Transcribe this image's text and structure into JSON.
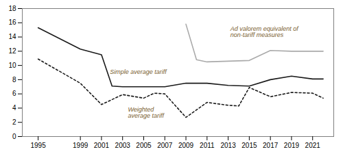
{
  "chart_data": {
    "type": "line",
    "series": [
      {
        "x": [
          1995,
          1999,
          2001,
          2002,
          2003,
          2005,
          2007,
          2009,
          2011,
          2013,
          2015,
          2017,
          2019,
          2021,
          2022
        ],
        "values": [
          15.3,
          12.3,
          11.5,
          7.1,
          7.0,
          7.0,
          7.0,
          7.5,
          7.5,
          7.2,
          7.1,
          8.0,
          8.5,
          8.1,
          8.1
        ],
        "color": "#1a1a1a",
        "line_style": "solid"
      },
      {
        "x": [
          1995,
          1999,
          2001,
          2003,
          2005,
          2006,
          2007,
          2009,
          2011,
          2013,
          2014,
          2015,
          2017,
          2019,
          2021,
          2022
        ],
        "values": [
          10.9,
          7.5,
          4.5,
          5.9,
          5.4,
          6.1,
          6.0,
          2.7,
          4.8,
          4.4,
          4.3,
          6.9,
          5.6,
          6.2,
          6.1,
          5.4
        ],
        "color": "#1a1a1a",
        "line_style": "dashed"
      },
      {
        "x": [
          2009,
          2010,
          2011,
          2013,
          2015,
          2017,
          2019,
          2021,
          2022
        ],
        "values": [
          15.8,
          10.8,
          10.5,
          10.6,
          10.7,
          12.1,
          12.0,
          12.0,
          12.0
        ],
        "color": "#aaaaaa",
        "line_style": "solid"
      }
    ],
    "annotations": [
      {
        "text": "Simple average tariff",
        "x": 2001.8,
        "y": 8.85,
        "color": "#7a6030"
      },
      {
        "text": "Weighted\naverage tariff",
        "x": 2003.5,
        "y": 4.15,
        "color": "#7a6030"
      },
      {
        "text": "Ad valorem equivalent of\nnon-tariff measures",
        "x": 2013.2,
        "y": 15.5,
        "color": "#7a6030"
      }
    ],
    "xlim": [
      1993.5,
      2023.0
    ],
    "xticks": [
      1995,
      1999,
      2001,
      2003,
      2005,
      2007,
      2009,
      2011,
      2013,
      2015,
      2017,
      2019,
      2021
    ],
    "ylim": [
      0,
      18
    ],
    "yticks": [
      0,
      2,
      4,
      6,
      8,
      10,
      12,
      14,
      16,
      18
    ],
    "grid": false
  }
}
